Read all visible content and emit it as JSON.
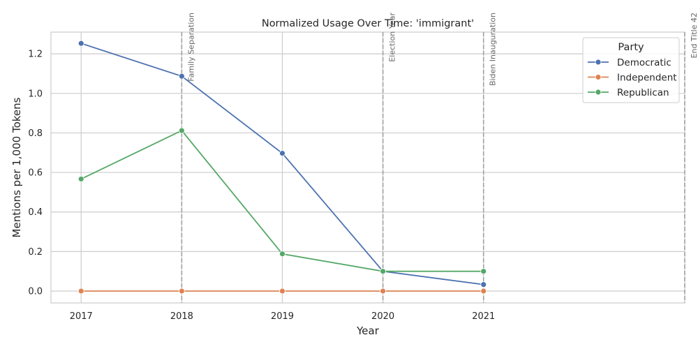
{
  "chart_data": {
    "type": "line",
    "title": "Normalized Usage Over Time: 'immigrant'",
    "xlabel": "Year",
    "ylabel": "Mentions per 1,000 Tokens",
    "x": [
      2017,
      2018,
      2019,
      2020,
      2021
    ],
    "xlim": [
      2016.7,
      2023.0
    ],
    "ylim": [
      -0.06,
      1.31
    ],
    "yticks": [
      0.0,
      0.2,
      0.4,
      0.6,
      0.8,
      1.0,
      1.2
    ],
    "ytick_labels": [
      "0.0",
      "0.2",
      "0.4",
      "0.6",
      "0.8",
      "1.0",
      "1.2"
    ],
    "xtick_labels": [
      "2017",
      "2018",
      "2019",
      "2020",
      "2021"
    ],
    "grid": true,
    "series": [
      {
        "name": "Democratic",
        "color": "#4c72b0",
        "values": [
          1.253,
          1.087,
          0.697,
          0.1,
          0.033
        ]
      },
      {
        "name": "Independent",
        "color": "#dd8452",
        "values": [
          0.0,
          0.0,
          0.0,
          0.0,
          0.0
        ]
      },
      {
        "name": "Republican",
        "color": "#55a868",
        "values": [
          0.567,
          0.812,
          0.188,
          0.1,
          0.1
        ]
      }
    ],
    "events": [
      {
        "x": 2018,
        "label": "Family Separation"
      },
      {
        "x": 2020,
        "label": "Election Year"
      },
      {
        "x": 2021,
        "label": "Biden Inauguration"
      },
      {
        "x": 2023,
        "label": "End Title 42"
      }
    ],
    "legend": {
      "title": "Party",
      "position": "top-right"
    }
  }
}
